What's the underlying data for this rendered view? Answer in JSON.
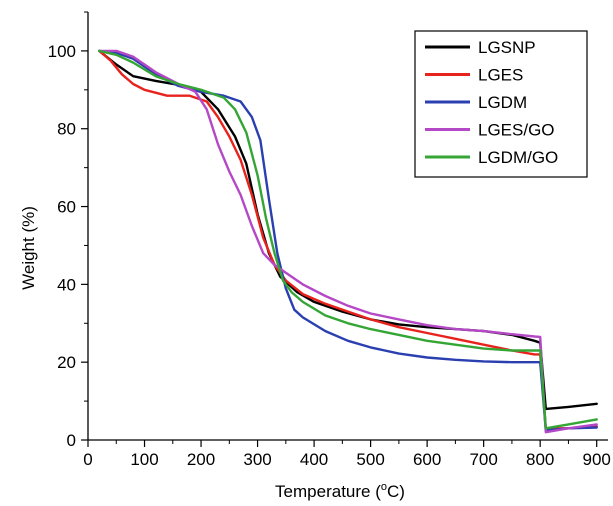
{
  "chart_data": {
    "type": "line",
    "xlabel": "Temperature (",
    "xlabel_unit": "C)",
    "xlabel_degree": "o",
    "ylabel": "Weight (%)",
    "xlim": [
      0,
      920
    ],
    "ylim": [
      0,
      110
    ],
    "xticks": [
      0,
      100,
      200,
      300,
      400,
      500,
      600,
      700,
      800,
      900
    ],
    "yticks": [
      0,
      20,
      40,
      60,
      80,
      100
    ],
    "grid": false,
    "legend_position": "top-right",
    "series": [
      {
        "name": "LGSNP",
        "color": "#000000",
        "points": [
          [
            20,
            100
          ],
          [
            50,
            96.5
          ],
          [
            80,
            93.5
          ],
          [
            120,
            92.3
          ],
          [
            160,
            91.3
          ],
          [
            200,
            89.5
          ],
          [
            230,
            85
          ],
          [
            260,
            78
          ],
          [
            280,
            71
          ],
          [
            300,
            58
          ],
          [
            320,
            48
          ],
          [
            340,
            42
          ],
          [
            370,
            38
          ],
          [
            400,
            35.5
          ],
          [
            450,
            33
          ],
          [
            500,
            31
          ],
          [
            550,
            29.7
          ],
          [
            600,
            29
          ],
          [
            650,
            28.5
          ],
          [
            700,
            28
          ],
          [
            750,
            27
          ],
          [
            790,
            25.5
          ],
          [
            800,
            25
          ],
          [
            810,
            8
          ],
          [
            850,
            8.5
          ],
          [
            900,
            9.3
          ]
        ]
      },
      {
        "name": "LGES",
        "color": "#e8221c",
        "points": [
          [
            20,
            100
          ],
          [
            40,
            97.5
          ],
          [
            60,
            94
          ],
          [
            80,
            91.5
          ],
          [
            100,
            90
          ],
          [
            140,
            88.5
          ],
          [
            180,
            88.5
          ],
          [
            210,
            87
          ],
          [
            230,
            83
          ],
          [
            250,
            78
          ],
          [
            270,
            72
          ],
          [
            290,
            63
          ],
          [
            310,
            52
          ],
          [
            330,
            45
          ],
          [
            350,
            41
          ],
          [
            380,
            37.5
          ],
          [
            420,
            35
          ],
          [
            460,
            33
          ],
          [
            500,
            31
          ],
          [
            550,
            29
          ],
          [
            600,
            27.5
          ],
          [
            650,
            26
          ],
          [
            700,
            24.5
          ],
          [
            750,
            23
          ],
          [
            790,
            22
          ],
          [
            800,
            22
          ],
          [
            810,
            3
          ],
          [
            850,
            3
          ],
          [
            900,
            3.5
          ]
        ]
      },
      {
        "name": "LGDM",
        "color": "#2a3fb0",
        "points": [
          [
            20,
            100
          ],
          [
            50,
            99.5
          ],
          [
            80,
            98
          ],
          [
            120,
            94
          ],
          [
            160,
            91
          ],
          [
            200,
            89.5
          ],
          [
            240,
            88.5
          ],
          [
            270,
            87
          ],
          [
            290,
            83
          ],
          [
            305,
            77
          ],
          [
            320,
            62
          ],
          [
            335,
            48
          ],
          [
            350,
            39
          ],
          [
            365,
            33.5
          ],
          [
            380,
            31.5
          ],
          [
            420,
            28
          ],
          [
            460,
            25.5
          ],
          [
            500,
            23.8
          ],
          [
            550,
            22.2
          ],
          [
            600,
            21.2
          ],
          [
            650,
            20.6
          ],
          [
            700,
            20.2
          ],
          [
            750,
            20
          ],
          [
            790,
            20
          ],
          [
            800,
            20
          ],
          [
            810,
            2.5
          ],
          [
            850,
            3
          ],
          [
            900,
            3.2
          ]
        ]
      },
      {
        "name": "LGES/GO",
        "color": "#b548c6",
        "points": [
          [
            20,
            100
          ],
          [
            50,
            100
          ],
          [
            80,
            98.5
          ],
          [
            120,
            94.5
          ],
          [
            160,
            91.5
          ],
          [
            190,
            89.5
          ],
          [
            210,
            85
          ],
          [
            230,
            76
          ],
          [
            250,
            69
          ],
          [
            270,
            63
          ],
          [
            290,
            55
          ],
          [
            310,
            48
          ],
          [
            330,
            45
          ],
          [
            350,
            43
          ],
          [
            380,
            40
          ],
          [
            420,
            37
          ],
          [
            460,
            34.5
          ],
          [
            500,
            32.5
          ],
          [
            550,
            31
          ],
          [
            600,
            29.5
          ],
          [
            650,
            28.5
          ],
          [
            700,
            28
          ],
          [
            750,
            27.2
          ],
          [
            790,
            26.6
          ],
          [
            800,
            26.5
          ],
          [
            810,
            2
          ],
          [
            850,
            3
          ],
          [
            900,
            4
          ]
        ]
      },
      {
        "name": "LGDM/GO",
        "color": "#35a535",
        "points": [
          [
            20,
            100
          ],
          [
            50,
            99
          ],
          [
            80,
            97
          ],
          [
            120,
            93.5
          ],
          [
            160,
            91.5
          ],
          [
            200,
            90
          ],
          [
            240,
            88
          ],
          [
            260,
            85
          ],
          [
            280,
            79
          ],
          [
            300,
            68
          ],
          [
            315,
            57
          ],
          [
            330,
            48
          ],
          [
            345,
            41
          ],
          [
            360,
            38
          ],
          [
            380,
            35.5
          ],
          [
            420,
            32
          ],
          [
            460,
            30
          ],
          [
            500,
            28.5
          ],
          [
            550,
            27
          ],
          [
            600,
            25.5
          ],
          [
            650,
            24.5
          ],
          [
            700,
            23.5
          ],
          [
            750,
            23
          ],
          [
            790,
            23
          ],
          [
            800,
            23
          ],
          [
            810,
            3
          ],
          [
            850,
            4
          ],
          [
            900,
            5.3
          ]
        ]
      }
    ]
  }
}
